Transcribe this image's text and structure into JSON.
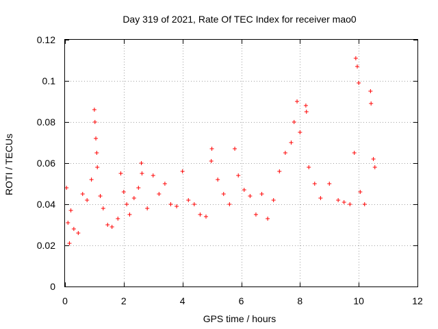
{
  "chart_data": {
    "type": "scatter",
    "title": "Day 319 of 2021, Rate Of TEC Index for receiver mao0",
    "xlabel": "GPS time / hours",
    "ylabel": "ROTI / TECUs",
    "xlim": [
      0,
      12
    ],
    "ylim": [
      0,
      0.12
    ],
    "grid": true,
    "marker": "+",
    "x_ticks": [
      "0",
      "2",
      "4",
      "6",
      "8",
      "10",
      "12"
    ],
    "y_ticks": [
      "0",
      "0.02",
      "0.04",
      "0.06",
      "0.08",
      "0.1",
      "0.12"
    ],
    "series": [
      {
        "name": "ROTI",
        "color": "#ff0000",
        "x": [
          0.05,
          0.1,
          0.15,
          0.2,
          0.3,
          0.45,
          0.6,
          0.75,
          0.9,
          1.0,
          1.02,
          1.05,
          1.08,
          1.1,
          1.2,
          1.3,
          1.45,
          1.6,
          1.8,
          1.9,
          2.0,
          2.1,
          2.2,
          2.35,
          2.5,
          2.6,
          2.62,
          2.8,
          3.0,
          3.2,
          3.4,
          3.6,
          3.8,
          4.0,
          4.2,
          4.4,
          4.6,
          4.8,
          4.98,
          5.0,
          5.2,
          5.4,
          5.6,
          5.78,
          5.9,
          6.1,
          6.3,
          6.5,
          6.7,
          6.9,
          7.1,
          7.3,
          7.5,
          7.7,
          7.8,
          7.9,
          8.0,
          8.2,
          8.22,
          8.3,
          8.5,
          8.7,
          9.0,
          9.3,
          9.5,
          9.7,
          9.85,
          9.9,
          9.95,
          10.0,
          10.05,
          10.2,
          10.4,
          10.42,
          10.5,
          10.55
        ],
        "y": [
          0.048,
          0.031,
          0.021,
          0.037,
          0.028,
          0.026,
          0.045,
          0.042,
          0.052,
          0.086,
          0.08,
          0.072,
          0.065,
          0.058,
          0.044,
          0.038,
          0.03,
          0.029,
          0.033,
          0.055,
          0.046,
          0.04,
          0.035,
          0.043,
          0.048,
          0.06,
          0.055,
          0.038,
          0.054,
          0.045,
          0.05,
          0.04,
          0.039,
          0.056,
          0.042,
          0.04,
          0.035,
          0.034,
          0.061,
          0.067,
          0.052,
          0.045,
          0.04,
          0.067,
          0.054,
          0.047,
          0.044,
          0.035,
          0.045,
          0.033,
          0.042,
          0.056,
          0.065,
          0.07,
          0.08,
          0.09,
          0.075,
          0.088,
          0.085,
          0.058,
          0.05,
          0.043,
          0.05,
          0.042,
          0.041,
          0.04,
          0.065,
          0.111,
          0.107,
          0.099,
          0.046,
          0.04,
          0.095,
          0.089,
          0.062,
          0.058
        ]
      }
    ]
  }
}
